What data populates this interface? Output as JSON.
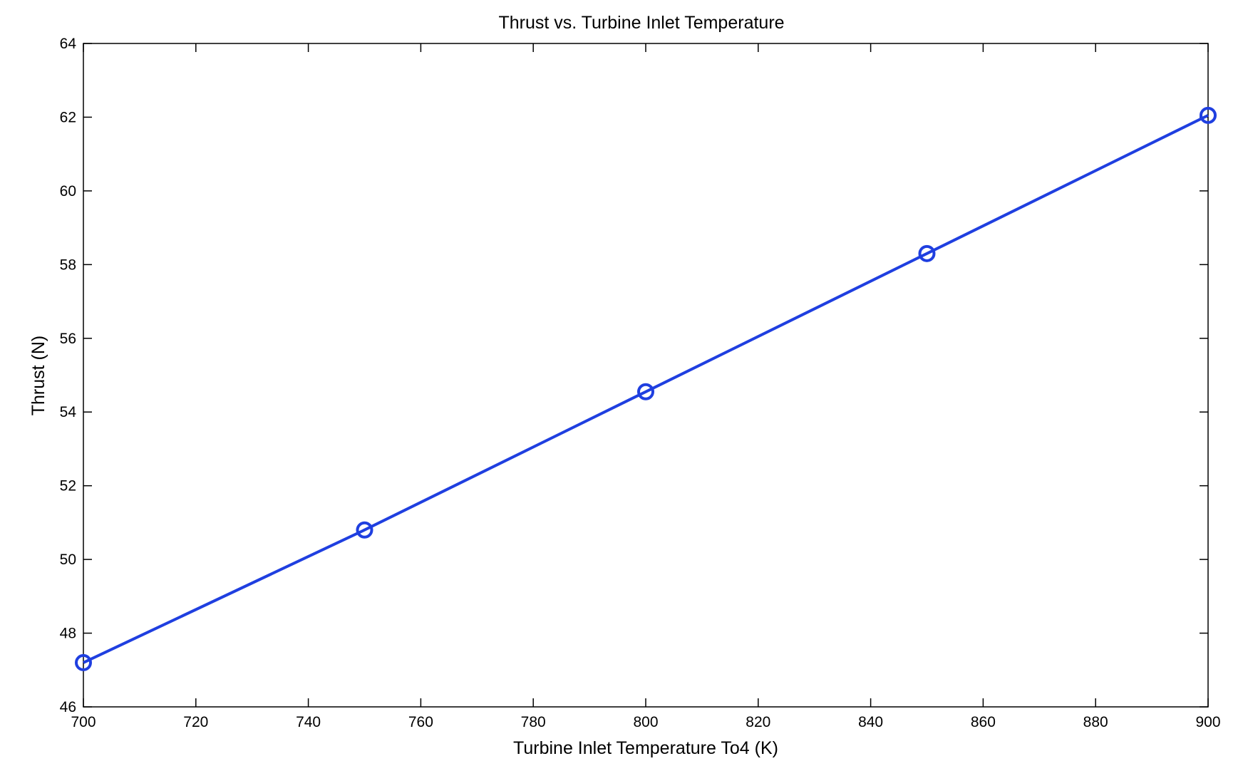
{
  "chart_data": {
    "type": "line",
    "title": "Thrust vs. Turbine Inlet Temperature",
    "xlabel": "Turbine Inlet Temperature To4 (K)",
    "ylabel": "Thrust (N)",
    "xlim": [
      700,
      900
    ],
    "ylim": [
      46,
      64
    ],
    "xticks": [
      700,
      720,
      740,
      760,
      780,
      800,
      820,
      840,
      860,
      880,
      900
    ],
    "yticks": [
      46,
      48,
      50,
      52,
      54,
      56,
      58,
      60,
      62,
      64
    ],
    "grid": false,
    "series": [
      {
        "color": "#1f3fe0",
        "marker": "circle",
        "x": [
          700,
          750,
          800,
          850,
          900
        ],
        "y": [
          47.2,
          50.8,
          54.55,
          58.3,
          62.05
        ]
      }
    ]
  }
}
